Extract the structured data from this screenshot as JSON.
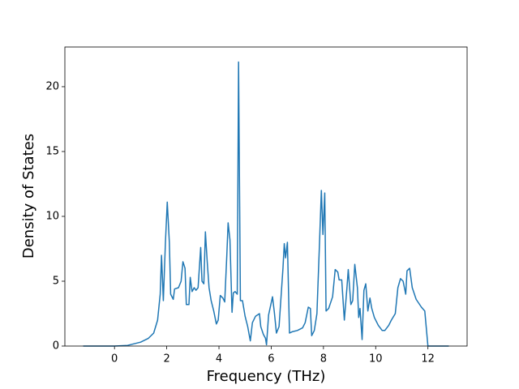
{
  "chart_data": {
    "type": "line",
    "xlabel": "Frequency (THz)",
    "ylabel": "Density of States",
    "x": [
      -1.2,
      0,
      0.5,
      1.0,
      1.3,
      1.5,
      1.65,
      1.75,
      1.8,
      1.87,
      1.95,
      2.02,
      2.1,
      2.15,
      2.25,
      2.3,
      2.45,
      2.55,
      2.62,
      2.7,
      2.75,
      2.85,
      2.9,
      2.97,
      3.05,
      3.12,
      3.2,
      3.3,
      3.35,
      3.42,
      3.48,
      3.55,
      3.62,
      3.7,
      3.8,
      3.9,
      3.97,
      4.05,
      4.15,
      4.22,
      4.3,
      4.35,
      4.42,
      4.5,
      4.55,
      4.62,
      4.7,
      4.75,
      4.82,
      4.9,
      5.0,
      5.1,
      5.2,
      5.28,
      5.4,
      5.55,
      5.6,
      5.7,
      5.78,
      5.82,
      5.9,
      6.05,
      6.12,
      6.2,
      6.3,
      6.45,
      6.5,
      6.55,
      6.62,
      6.7,
      6.8,
      7.0,
      7.2,
      7.3,
      7.42,
      7.5,
      7.55,
      7.65,
      7.75,
      7.85,
      7.92,
      7.98,
      8.05,
      8.1,
      8.2,
      8.35,
      8.45,
      8.55,
      8.6,
      8.7,
      8.8,
      8.9,
      8.95,
      9.05,
      9.12,
      9.2,
      9.3,
      9.35,
      9.4,
      9.48,
      9.55,
      9.62,
      9.7,
      9.78,
      9.85,
      9.95,
      10.1,
      10.25,
      10.35,
      10.5,
      10.6,
      10.75,
      10.85,
      10.95,
      11.05,
      11.15,
      11.2,
      11.3,
      11.4,
      11.55,
      11.75,
      11.88,
      12.0,
      12.8
    ],
    "series": [
      {
        "color": "#1f77b4",
        "values": [
          0,
          0,
          0.05,
          0.3,
          0.6,
          1.0,
          2,
          4,
          7.0,
          3.5,
          8,
          11.1,
          8,
          4,
          3.6,
          4.4,
          4.5,
          5,
          6.5,
          6,
          3.2,
          3.2,
          5.3,
          4.2,
          4.5,
          4.3,
          4.5,
          7.6,
          5,
          4.8,
          8.8,
          6.5,
          4.5,
          3.5,
          2.7,
          1.7,
          2,
          3.9,
          3.7,
          3.4,
          7,
          9.5,
          8.2,
          2.6,
          4.1,
          4.2,
          4.0,
          21.9,
          3.5,
          3.5,
          2.3,
          1.5,
          0.4,
          1.8,
          2.3,
          2.5,
          1.5,
          0.9,
          0.6,
          0.1,
          2.4,
          3.8,
          2.6,
          1.0,
          1.5,
          6,
          7.9,
          6.8,
          8,
          1.0,
          1.1,
          1.2,
          1.4,
          1.8,
          3.0,
          2.9,
          0.8,
          1.2,
          2.5,
          8,
          12,
          8.6,
          11.8,
          2.7,
          2.9,
          3.8,
          5.9,
          5.7,
          5.1,
          5.1,
          2.0,
          4.5,
          5.9,
          3.2,
          3.5,
          6.3,
          4.5,
          2.2,
          2.9,
          0.5,
          4.3,
          4.8,
          2.7,
          3.7,
          2.9,
          2.2,
          1.6,
          1.2,
          1.2,
          1.6,
          2.0,
          2.5,
          4.5,
          5.2,
          5.0,
          4.0,
          5.8,
          6.0,
          4.5,
          3.6,
          3.0,
          2.7,
          0,
          0
        ]
      }
    ],
    "xlim": [
      -1.9,
      13.5
    ],
    "xticks": [
      0,
      2,
      4,
      6,
      8,
      10,
      12
    ],
    "ylim": [
      0,
      23.06
    ],
    "yticks": [
      0,
      5,
      10,
      15,
      20
    ]
  }
}
